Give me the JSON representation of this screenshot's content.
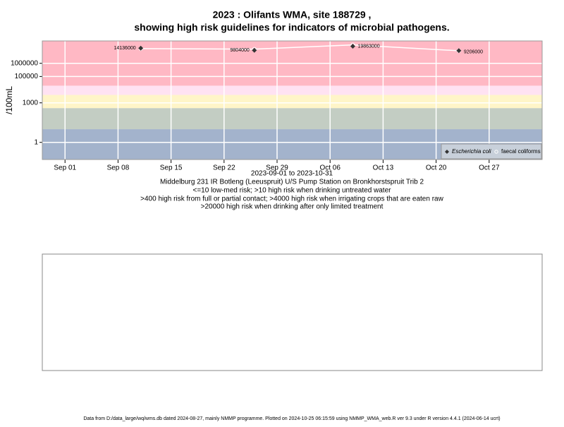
{
  "chart_data": {
    "type": "scatter",
    "title": "2023 : Olifants WMA, site 188729 ,",
    "subtitle": "showing high risk guidelines for indicators of microbial pathogens.",
    "y_label": "/100mL",
    "x_label": "2023-09-01 to 2023-10-31",
    "site": "Middelburg 231 IR Botleng (Leeuspruit) U/S Pump Station on Bronkhorstspruit Trib 2",
    "notes": [
      "<=10 low-med risk; >10 high risk when drinking untreated water",
      ">400 high risk from full or partial contact; >4000 high risk when irrigating crops that are eaten raw",
      ">20000 high risk when drinking after only limited treatment"
    ],
    "footer": "Data from D:/data_large/wq/wms.db dated 2024-08-27, mainly NMMP programme. Plotted on 2024-10-25 06:15:59 using NMMP_WMA_web.R ver 9.3 under R version 4.4.1 (2024-06-14 ucrt)",
    "log_y": true,
    "grid": true,
    "legend_position": "bottom-right",
    "thresholds": [
      10,
      400,
      4000,
      20000
    ],
    "band_colors": [
      "#a3b3cc",
      "#c3cdc3",
      "#fff5c8",
      "#ffe2f2",
      "#ffb8c4"
    ],
    "xlim": [
      "2023-08-29",
      "2023-11-03"
    ],
    "xticks": [
      {
        "value": "2023-09-01",
        "label": "Sep 01"
      },
      {
        "value": "2023-09-08",
        "label": "Sep 08"
      },
      {
        "value": "2023-09-15",
        "label": "Sep 15"
      },
      {
        "value": "2023-09-22",
        "label": "Sep 22"
      },
      {
        "value": "2023-09-29",
        "label": "Sep 29"
      },
      {
        "value": "2023-10-06",
        "label": "Oct 06"
      },
      {
        "value": "2023-10-13",
        "label": "Oct 13"
      },
      {
        "value": "2023-10-20",
        "label": "Oct 20"
      },
      {
        "value": "2023-10-27",
        "label": "Oct 27"
      }
    ],
    "ylim": [
      0.05,
      50000000
    ],
    "yticks": [
      1,
      1000,
      100000,
      1000000
    ],
    "x": [
      "2023-09-11",
      "2023-09-26",
      "2023-10-09",
      "2023-10-23"
    ],
    "series": [
      {
        "name": "Escherichia coli",
        "color": "#333333",
        "values": [
          14136000,
          9804000,
          19863000,
          9206000
        ]
      },
      {
        "name": "faecal coliforms",
        "color": "#ffffff",
        "values": [
          13000000,
          12000000,
          25000000,
          9000000
        ]
      }
    ]
  }
}
